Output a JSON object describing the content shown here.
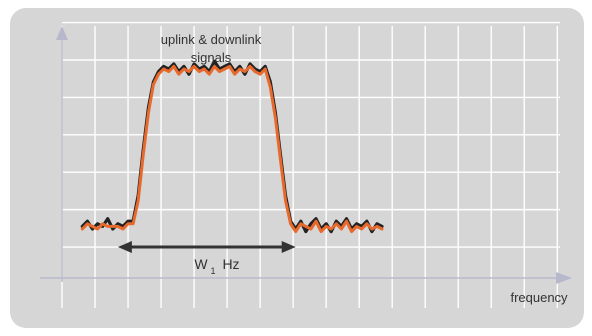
{
  "chart_data": {
    "type": "line",
    "title": "",
    "xlabel": "frequency",
    "ylabel": "",
    "xlim": [
      0,
      100
    ],
    "ylim": [
      0,
      100
    ],
    "grid": true,
    "annotations": {
      "signal_label_line1": "uplink & downlink",
      "signal_label_line2": "signals",
      "bandwidth_label_main": "W",
      "bandwidth_label_sub": "1",
      "bandwidth_label_unit": "Hz"
    },
    "bandwidth_span": [
      11,
      46
    ],
    "series": [
      {
        "color": "#222222",
        "x": [
          4,
          5,
          6,
          7,
          8,
          9,
          10,
          11,
          12,
          13,
          14,
          15,
          16,
          17,
          18,
          19,
          20,
          21,
          22,
          23,
          24,
          25,
          26,
          27,
          28,
          29,
          30,
          31,
          32,
          33,
          34,
          35,
          36,
          37,
          38,
          39,
          40,
          41,
          42,
          43,
          44,
          45,
          46,
          47,
          48,
          49,
          50,
          51,
          52,
          53,
          54,
          55,
          56,
          57,
          58,
          59,
          60,
          61,
          62,
          63
        ],
        "y": [
          20,
          22,
          19,
          21,
          20,
          23,
          19,
          21,
          20,
          22,
          22,
          32,
          50,
          66,
          76,
          80,
          82,
          81,
          83,
          80,
          82,
          79,
          83,
          81,
          82,
          80,
          84,
          81,
          82,
          83,
          80,
          82,
          79,
          83,
          81,
          80,
          82,
          76,
          64,
          48,
          32,
          22,
          19,
          22,
          18,
          21,
          23,
          19,
          21,
          18,
          22,
          20,
          23,
          19,
          21,
          20,
          22,
          18,
          21,
          20
        ]
      },
      {
        "color": "#e8692c",
        "x": [
          4,
          5,
          6,
          7,
          8,
          9,
          10,
          11,
          12,
          13,
          14,
          15,
          16,
          17,
          18,
          19,
          20,
          21,
          22,
          23,
          24,
          25,
          26,
          27,
          28,
          29,
          30,
          31,
          32,
          33,
          34,
          35,
          36,
          37,
          38,
          39,
          40,
          41,
          42,
          43,
          44,
          45,
          46,
          47,
          48,
          49,
          50,
          51,
          52,
          53,
          54,
          55,
          56,
          57,
          58,
          59,
          60,
          61,
          62,
          63
        ],
        "y": [
          19,
          21,
          20,
          19,
          21,
          20,
          20,
          20,
          19,
          21,
          21,
          30,
          48,
          64,
          75,
          79,
          81,
          80,
          82,
          79,
          81,
          80,
          82,
          80,
          81,
          79,
          82,
          80,
          81,
          82,
          79,
          81,
          80,
          82,
          80,
          79,
          81,
          74,
          62,
          46,
          30,
          21,
          18,
          21,
          20,
          19,
          22,
          18,
          20,
          19,
          21,
          19,
          22,
          18,
          20,
          19,
          21,
          19,
          20,
          19
        ]
      }
    ]
  }
}
